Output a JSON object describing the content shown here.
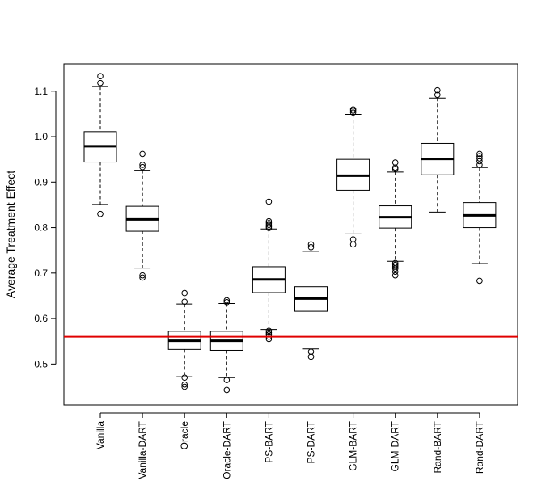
{
  "chart_data": {
    "type": "boxplot",
    "title": "",
    "xlabel": "",
    "ylabel": "Average Treatment Effect",
    "ylim": [
      0.41,
      1.16
    ],
    "yticks": [
      0.5,
      0.6,
      0.7,
      0.8,
      0.9,
      1.0,
      1.1
    ],
    "ytick_labels": [
      "0.5",
      "0.6",
      "0.7",
      "0.8",
      "0.9",
      "1.0",
      "1.1"
    ],
    "reference_line": {
      "value": 0.56,
      "color": "#e00000"
    },
    "categories": [
      "Vanilla",
      "Vanilla-DART",
      "Oracle",
      "Oracle-DART",
      "PS-BART",
      "PS-DART",
      "GLM-BART",
      "GLM-DART",
      "Rand-BART",
      "Rand-DART"
    ],
    "boxes": [
      {
        "name": "Vanilla",
        "whisker_low": 0.851,
        "q1": 0.944,
        "median": 0.979,
        "q3": 1.011,
        "whisker_high": 1.11,
        "outliers": [
          1.133,
          1.118,
          0.83
        ]
      },
      {
        "name": "Vanilla-DART",
        "whisker_low": 0.711,
        "q1": 0.792,
        "median": 0.818,
        "q3": 0.847,
        "whisker_high": 0.926,
        "outliers": [
          0.962,
          0.938,
          0.933,
          0.695,
          0.69
        ]
      },
      {
        "name": "Oracle",
        "whisker_low": 0.472,
        "q1": 0.532,
        "median": 0.551,
        "q3": 0.572,
        "whisker_high": 0.632,
        "outliers": [
          0.656,
          0.637,
          0.47,
          0.455,
          0.45
        ]
      },
      {
        "name": "Oracle-DART",
        "whisker_low": 0.47,
        "q1": 0.53,
        "median": 0.551,
        "q3": 0.572,
        "whisker_high": 0.633,
        "outliers": [
          0.64,
          0.636,
          0.465,
          0.443
        ]
      },
      {
        "name": "PS-BART",
        "whisker_low": 0.576,
        "q1": 0.657,
        "median": 0.686,
        "q3": 0.714,
        "whisker_high": 0.797,
        "outliers": [
          0.857,
          0.814,
          0.81,
          0.806,
          0.802,
          0.799,
          0.573,
          0.569,
          0.565,
          0.56,
          0.555
        ]
      },
      {
        "name": "PS-DART",
        "whisker_low": 0.533,
        "q1": 0.616,
        "median": 0.644,
        "q3": 0.67,
        "whisker_high": 0.748,
        "outliers": [
          0.763,
          0.757,
          0.527,
          0.516
        ]
      },
      {
        "name": "GLM-BART",
        "whisker_low": 0.786,
        "q1": 0.882,
        "median": 0.914,
        "q3": 0.95,
        "whisker_high": 1.049,
        "outliers": [
          1.06,
          1.057,
          1.053,
          0.774,
          0.763
        ]
      },
      {
        "name": "GLM-DART",
        "whisker_low": 0.726,
        "q1": 0.799,
        "median": 0.823,
        "q3": 0.848,
        "whisker_high": 0.922,
        "outliers": [
          0.943,
          0.932,
          0.929,
          0.722,
          0.718,
          0.714,
          0.71,
          0.703,
          0.695
        ]
      },
      {
        "name": "Rand-BART",
        "whisker_low": 0.834,
        "q1": 0.916,
        "median": 0.951,
        "q3": 0.985,
        "whisker_high": 1.085,
        "outliers": [
          1.102,
          1.092
        ]
      },
      {
        "name": "Rand-DART",
        "whisker_low": 0.721,
        "q1": 0.8,
        "median": 0.827,
        "q3": 0.855,
        "whisker_high": 0.932,
        "outliers": [
          0.962,
          0.957,
          0.952,
          0.946,
          0.938,
          0.683
        ]
      }
    ]
  }
}
